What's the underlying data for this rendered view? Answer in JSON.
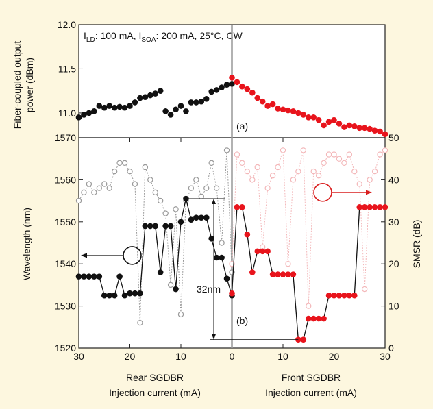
{
  "chart_data": [
    {
      "type": "scatter",
      "panel": "(a)",
      "ylabel_line1": "Fiber-coupled output",
      "ylabel_line2": "power (dBm)",
      "ylim": [
        10.72,
        12.0
      ],
      "yticks": [
        "11.0",
        "11.5",
        "12.0"
      ],
      "annotation": {
        "main": "I",
        "sub1": "LD",
        "part2": ": 100 mA, I",
        "sub2": "SOA",
        "part3": ": 200 mA, 25°C, CW"
      },
      "series": [
        {
          "color": "#111111",
          "points": [
            [
              30,
              10.95
            ],
            [
              29,
              10.98
            ],
            [
              28,
              11.0
            ],
            [
              27,
              11.02
            ],
            [
              26,
              11.08
            ],
            [
              25,
              11.06
            ],
            [
              24,
              11.08
            ],
            [
              23,
              11.06
            ],
            [
              22,
              11.07
            ],
            [
              21,
              11.06
            ],
            [
              20,
              11.08
            ],
            [
              19,
              11.12
            ],
            [
              18,
              11.17
            ],
            [
              17,
              11.18
            ],
            [
              16,
              11.2
            ],
            [
              15,
              11.22
            ],
            [
              14,
              11.25
            ],
            [
              13,
              11.02
            ],
            [
              12,
              10.98
            ],
            [
              11,
              11.04
            ],
            [
              10,
              11.08
            ],
            [
              9,
              11.02
            ],
            [
              8,
              11.12
            ],
            [
              7,
              11.12
            ],
            [
              6,
              11.13
            ],
            [
              5,
              11.16
            ],
            [
              4,
              11.24
            ],
            [
              3,
              11.26
            ],
            [
              2,
              11.29
            ],
            [
              1,
              11.32
            ],
            [
              0,
              11.33
            ]
          ]
        },
        {
          "color": "#e8141c",
          "points": [
            [
              0,
              11.4
            ],
            [
              1,
              11.35
            ],
            [
              2,
              11.3
            ],
            [
              3,
              11.27
            ],
            [
              4,
              11.23
            ],
            [
              5,
              11.17
            ],
            [
              6,
              11.13
            ],
            [
              7,
              11.08
            ],
            [
              8,
              11.1
            ],
            [
              9,
              11.05
            ],
            [
              10,
              11.04
            ],
            [
              11,
              11.03
            ],
            [
              12,
              11.02
            ],
            [
              13,
              11.0
            ],
            [
              14,
              10.98
            ],
            [
              15,
              10.95
            ],
            [
              16,
              10.95
            ],
            [
              17,
              10.92
            ],
            [
              18,
              10.86
            ],
            [
              19,
              10.9
            ],
            [
              20,
              10.92
            ],
            [
              21,
              10.88
            ],
            [
              22,
              10.84
            ],
            [
              23,
              10.86
            ],
            [
              24,
              10.85
            ],
            [
              25,
              10.83
            ],
            [
              26,
              10.83
            ],
            [
              27,
              10.82
            ],
            [
              28,
              10.8
            ],
            [
              29,
              10.79
            ],
            [
              30,
              10.76
            ]
          ]
        }
      ]
    },
    {
      "type": "scatter",
      "panel": "(b)",
      "xlabel_left_line1": "Rear SGDBR",
      "xlabel_left_line2": "Injection current (mA)",
      "xlabel_right_line1": "Front SGDBR",
      "xlabel_right_line2": "Injection current (mA)",
      "ylabel_left": "Wavelength (nm)",
      "ylabel_right": "SMSR (dB)",
      "xticks": [
        "30",
        "20",
        "10",
        "0",
        "10",
        "20",
        "30"
      ],
      "ylim_left": [
        1520,
        1570
      ],
      "ylim_right": [
        0,
        50
      ],
      "yticks_left": [
        "1520",
        "1530",
        "1540",
        "1550",
        "1560",
        "1570"
      ],
      "yticks_right": [
        "0",
        "10",
        "20",
        "30",
        "40",
        "50"
      ],
      "annotation": "32nm",
      "wavelength": [
        {
          "color": "#111111",
          "points": [
            [
              30,
              1537
            ],
            [
              29,
              1537
            ],
            [
              28,
              1537
            ],
            [
              27,
              1537
            ],
            [
              26,
              1537
            ],
            [
              25,
              1532.5
            ],
            [
              24,
              1532.5
            ],
            [
              23,
              1532.5
            ],
            [
              22,
              1537
            ],
            [
              21,
              1532.5
            ],
            [
              20,
              1533
            ],
            [
              19,
              1533
            ],
            [
              18,
              1533
            ],
            [
              17,
              1549
            ],
            [
              16,
              1549
            ],
            [
              15,
              1549
            ],
            [
              14,
              1538
            ],
            [
              13,
              1549
            ],
            [
              12,
              1549
            ],
            [
              11,
              1534
            ],
            [
              10,
              1550
            ],
            [
              9,
              1555.5
            ],
            [
              8,
              1550.5
            ],
            [
              7,
              1551
            ],
            [
              6,
              1551
            ],
            [
              5,
              1551
            ],
            [
              4,
              1546
            ],
            [
              3,
              1541.5
            ],
            [
              2,
              1541.5
            ],
            [
              1,
              1536.5
            ],
            [
              0,
              1532.5
            ]
          ]
        },
        {
          "color": "#e8141c",
          "points": [
            [
              0,
              1533
            ],
            [
              1,
              1553.5
            ],
            [
              2,
              1553.5
            ],
            [
              3,
              1547
            ],
            [
              4,
              1538
            ],
            [
              5,
              1543
            ],
            [
              6,
              1543
            ],
            [
              7,
              1543
            ],
            [
              8,
              1537.5
            ],
            [
              9,
              1537.5
            ],
            [
              10,
              1537.5
            ],
            [
              11,
              1537.5
            ],
            [
              12,
              1537.5
            ],
            [
              13,
              1522
            ],
            [
              14,
              1522
            ],
            [
              15,
              1527
            ],
            [
              16,
              1527
            ],
            [
              17,
              1527
            ],
            [
              18,
              1527
            ],
            [
              19,
              1532.5
            ],
            [
              20,
              1532.5
            ],
            [
              21,
              1532.5
            ],
            [
              22,
              1532.5
            ],
            [
              23,
              1532.5
            ],
            [
              24,
              1532.5
            ],
            [
              25,
              1553.5
            ],
            [
              26,
              1553.5
            ],
            [
              27,
              1553.5
            ],
            [
              28,
              1553.5
            ],
            [
              29,
              1553.5
            ],
            [
              30,
              1553.5
            ]
          ]
        }
      ],
      "smsr": [
        {
          "color": "#999999",
          "points": [
            [
              30,
              35
            ],
            [
              29,
              37
            ],
            [
              28,
              39
            ],
            [
              27,
              37
            ],
            [
              26,
              38
            ],
            [
              25,
              39
            ],
            [
              24,
              38
            ],
            [
              23,
              42
            ],
            [
              22,
              44
            ],
            [
              21,
              44
            ],
            [
              20,
              42
            ],
            [
              19,
              39
            ],
            [
              18,
              6
            ],
            [
              17,
              43
            ],
            [
              16,
              40
            ],
            [
              15,
              37
            ],
            [
              14,
              35
            ],
            [
              13,
              32
            ],
            [
              12,
              15
            ],
            [
              11,
              33
            ],
            [
              10,
              8
            ],
            [
              9,
              35
            ],
            [
              8,
              38
            ],
            [
              7,
              40
            ],
            [
              6,
              36
            ],
            [
              5,
              38
            ],
            [
              4,
              44
            ],
            [
              3,
              38
            ],
            [
              2,
              25
            ],
            [
              1,
              47
            ],
            [
              0,
              18
            ]
          ]
        },
        {
          "color": "#f3b7b9",
          "points": [
            [
              0,
              20
            ],
            [
              1,
              46
            ],
            [
              2,
              44
            ],
            [
              3,
              42
            ],
            [
              4,
              40
            ],
            [
              5,
              43
            ],
            [
              6,
              24
            ],
            [
              7,
              38
            ],
            [
              8,
              41
            ],
            [
              9,
              43
            ],
            [
              10,
              47
            ],
            [
              11,
              20
            ],
            [
              12,
              40
            ],
            [
              13,
              42
            ],
            [
              14,
              47
            ],
            [
              15,
              10
            ],
            [
              16,
              42
            ],
            [
              17,
              41
            ],
            [
              18,
              44
            ],
            [
              19,
              46
            ],
            [
              20,
              46
            ],
            [
              21,
              45
            ],
            [
              22,
              44
            ],
            [
              23,
              46
            ],
            [
              24,
              42
            ],
            [
              25,
              39
            ],
            [
              26,
              14
            ],
            [
              27,
              40
            ],
            [
              28,
              42
            ],
            [
              29,
              46
            ],
            [
              30,
              47
            ]
          ]
        }
      ]
    }
  ]
}
